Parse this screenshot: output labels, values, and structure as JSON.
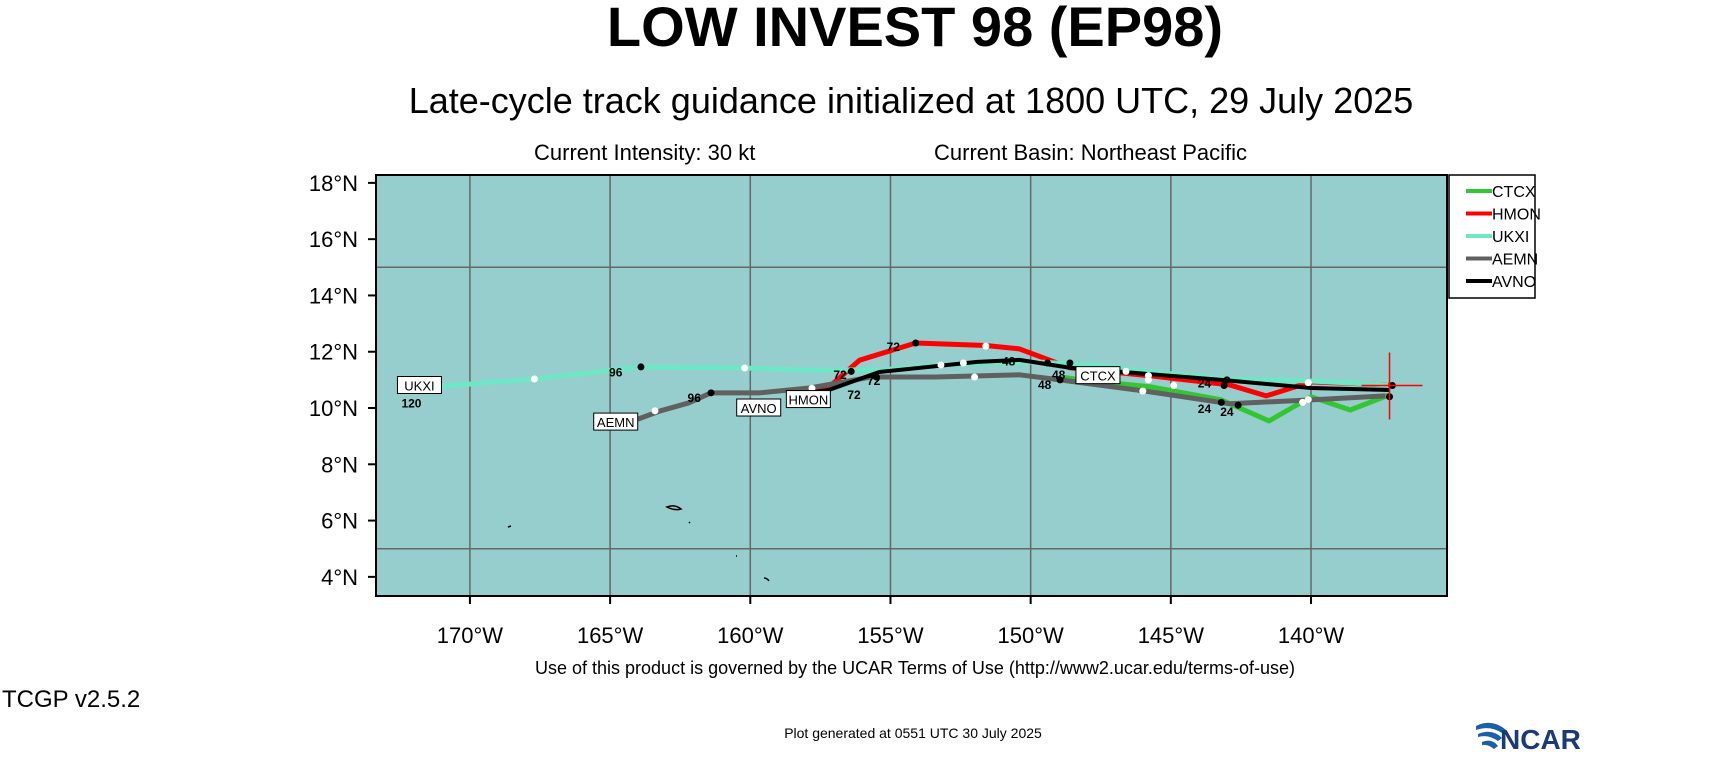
{
  "header": {
    "title": "LOW INVEST 98 (EP98)",
    "subtitle": "Late-cycle track guidance initialized at 1800 UTC, 29 July 2025",
    "intensity": "Current Intensity: 30 kt",
    "basin": "Current Basin: Northeast Pacific"
  },
  "footer": {
    "terms": "Use of this product is governed by the UCAR Terms of Use (http://www2.ucar.edu/terms-of-use)",
    "version": "TCGP v2.5.2",
    "generated": "Plot generated at 0551 UTC   30 July 2025",
    "logo_text": "NCAR"
  },
  "chart_data": {
    "type": "line",
    "title": "LOW INVEST 98 (EP98)",
    "xlim": [
      -173.35,
      -135.15
    ],
    "ylim": [
      3.32,
      18.28
    ],
    "background": "#96cece",
    "x_ticks": [
      {
        "v": -170,
        "label": "170°W"
      },
      {
        "v": -165,
        "label": "165°W"
      },
      {
        "v": -160,
        "label": "160°W"
      },
      {
        "v": -155,
        "label": "155°W"
      },
      {
        "v": -150,
        "label": "150°W"
      },
      {
        "v": -145,
        "label": "145°W"
      },
      {
        "v": -140,
        "label": "140°W"
      }
    ],
    "y_ticks": [
      {
        "v": 18,
        "label": "18°N"
      },
      {
        "v": 16,
        "label": "16°N"
      },
      {
        "v": 14,
        "label": "14°N"
      },
      {
        "v": 12,
        "label": "12°N"
      },
      {
        "v": 10,
        "label": "10°N"
      },
      {
        "v": 8,
        "label": "8°N"
      },
      {
        "v": 6,
        "label": "6°N"
      },
      {
        "v": 4,
        "label": "4°N"
      }
    ],
    "grid_lon": [
      -170,
      -165,
      -160,
      -155,
      -150,
      -145,
      -140
    ],
    "grid_lat": [
      15,
      5
    ],
    "current_position": {
      "lon": -137.2,
      "lat": 10.8
    },
    "legend_position": "right",
    "series": [
      {
        "name": "CTCX",
        "color": "#33c633",
        "label": "CTCX",
        "label_at": [
          -147.6,
          11.15
        ],
        "points": [
          [
            -137.2,
            10.47
          ],
          [
            -138.6,
            9.93
          ],
          [
            -140.0,
            10.4
          ],
          [
            -141.5,
            9.54
          ],
          [
            -143.2,
            10.29
          ],
          [
            -145.7,
            10.75
          ],
          [
            -148.2,
            11.0
          ],
          [
            -148.9,
            11.1
          ]
        ]
      },
      {
        "name": "HMON",
        "color": "#ff0000",
        "label": "HMON",
        "label_at": [
          -158.5,
          10.3
        ],
        "points": [
          [
            -137.2,
            10.82
          ],
          [
            -140.0,
            10.93
          ],
          [
            -141.6,
            10.43
          ],
          [
            -142.9,
            10.82
          ],
          [
            -145.7,
            11.14
          ],
          [
            -148.6,
            11.43
          ],
          [
            -150.4,
            12.1
          ],
          [
            -151.6,
            12.22
          ],
          [
            -154.1,
            12.31
          ],
          [
            -156.1,
            11.7
          ],
          [
            -157.2,
            10.74
          ],
          [
            -157.9,
            10.57
          ]
        ]
      },
      {
        "name": "UKXI",
        "color": "#6ee8c4",
        "label": "UKXI",
        "label_at": [
          -171.8,
          10.8
        ],
        "points": [
          [
            -137.25,
            10.82
          ],
          [
            -140.0,
            10.96
          ],
          [
            -142.9,
            11.03
          ],
          [
            -145.7,
            11.28
          ],
          [
            -147.5,
            11.5
          ],
          [
            -149.8,
            11.64
          ],
          [
            -152.2,
            11.57
          ],
          [
            -153.2,
            11.53
          ],
          [
            -155.4,
            11.35
          ],
          [
            -158.2,
            11.35
          ],
          [
            -160.2,
            11.42
          ],
          [
            -163.9,
            11.46
          ],
          [
            -167.7,
            11.03
          ],
          [
            -171.8,
            10.71
          ]
        ]
      },
      {
        "name": "AEMN",
        "color": "#606060",
        "label": "AEMN",
        "label_at": [
          -164.8,
          9.5
        ],
        "points": [
          [
            -137.35,
            10.43
          ],
          [
            -140.0,
            10.29
          ],
          [
            -142.9,
            10.15
          ],
          [
            -145.7,
            10.57
          ],
          [
            -148.95,
            11.0
          ],
          [
            -150.4,
            11.18
          ],
          [
            -153.4,
            11.1
          ],
          [
            -155.7,
            11.1
          ],
          [
            -157.9,
            10.71
          ],
          [
            -159.65,
            10.54
          ],
          [
            -161.4,
            10.54
          ],
          [
            -162.2,
            10.18
          ],
          [
            -163.2,
            9.9
          ],
          [
            -164.3,
            9.5
          ]
        ]
      },
      {
        "name": "AVNO",
        "color": "#000000",
        "label": "AVNO",
        "label_at": [
          -159.7,
          10.0
        ],
        "points": [
          [
            -137.2,
            10.64
          ],
          [
            -140.0,
            10.71
          ],
          [
            -143.2,
            11.0
          ],
          [
            -148.6,
            11.43
          ],
          [
            -150.4,
            11.71
          ],
          [
            -151.9,
            11.64
          ],
          [
            -155.4,
            11.28
          ],
          [
            -157.2,
            10.64
          ],
          [
            -158.3,
            10.5
          ]
        ]
      }
    ],
    "hour_labels": [
      {
        "text": "120",
        "lon": -171.8,
        "lat": 10.55
      },
      {
        "text": "96",
        "lon": -164.8,
        "lat": 11.3
      },
      {
        "text": "96",
        "lon": -162.0,
        "lat": 10.4
      },
      {
        "text": "72",
        "lon": -154.9,
        "lat": 12.2
      },
      {
        "text": "72",
        "lon": -156.8,
        "lat": 11.2
      },
      {
        "text": "72",
        "lon": -155.6,
        "lat": 11.0
      },
      {
        "text": "72",
        "lon": -156.3,
        "lat": 10.5
      },
      {
        "text": "48",
        "lon": -150.5,
        "lat": 11.55
      },
      {
        "text": "48",
        "lon": -149.5,
        "lat": 11.35
      },
      {
        "text": "48",
        "lon": -149.5,
        "lat": 10.85
      },
      {
        "text": "24",
        "lon": -143.8,
        "lat": 10.9
      },
      {
        "text": "24",
        "lon": -143.8,
        "lat": 10.0
      },
      {
        "text": "24",
        "lon": -143.0,
        "lat": 9.9
      }
    ],
    "markers": [
      [
        -163.9,
        11.46
      ],
      [
        -161.4,
        10.54
      ],
      [
        -154.1,
        12.31
      ],
      [
        -156.4,
        11.3
      ],
      [
        -155.5,
        11.1
      ],
      [
        -149.4,
        11.6
      ],
      [
        -148.6,
        11.6
      ],
      [
        -143.0,
        11.0
      ],
      [
        -143.1,
        10.8
      ],
      [
        -143.2,
        10.2
      ],
      [
        -142.6,
        10.1
      ],
      [
        -137.2,
        10.4
      ],
      [
        -137.1,
        10.8
      ],
      [
        -148.95,
        11.0
      ]
    ],
    "white_markers": [
      [
        -167.7,
        11.03
      ],
      [
        -160.2,
        11.42
      ],
      [
        -153.2,
        11.53
      ],
      [
        -152.4,
        11.6
      ],
      [
        -151.6,
        12.2
      ],
      [
        -152.0,
        11.1
      ],
      [
        -157.8,
        10.7
      ],
      [
        -163.4,
        9.9
      ],
      [
        -146.6,
        11.3
      ],
      [
        -145.8,
        11.15
      ],
      [
        -145.8,
        11.0
      ],
      [
        -146.0,
        10.6
      ],
      [
        -144.9,
        10.8
      ],
      [
        -140.1,
        10.9
      ],
      [
        -140.1,
        10.3
      ],
      [
        -140.3,
        10.2
      ]
    ]
  }
}
